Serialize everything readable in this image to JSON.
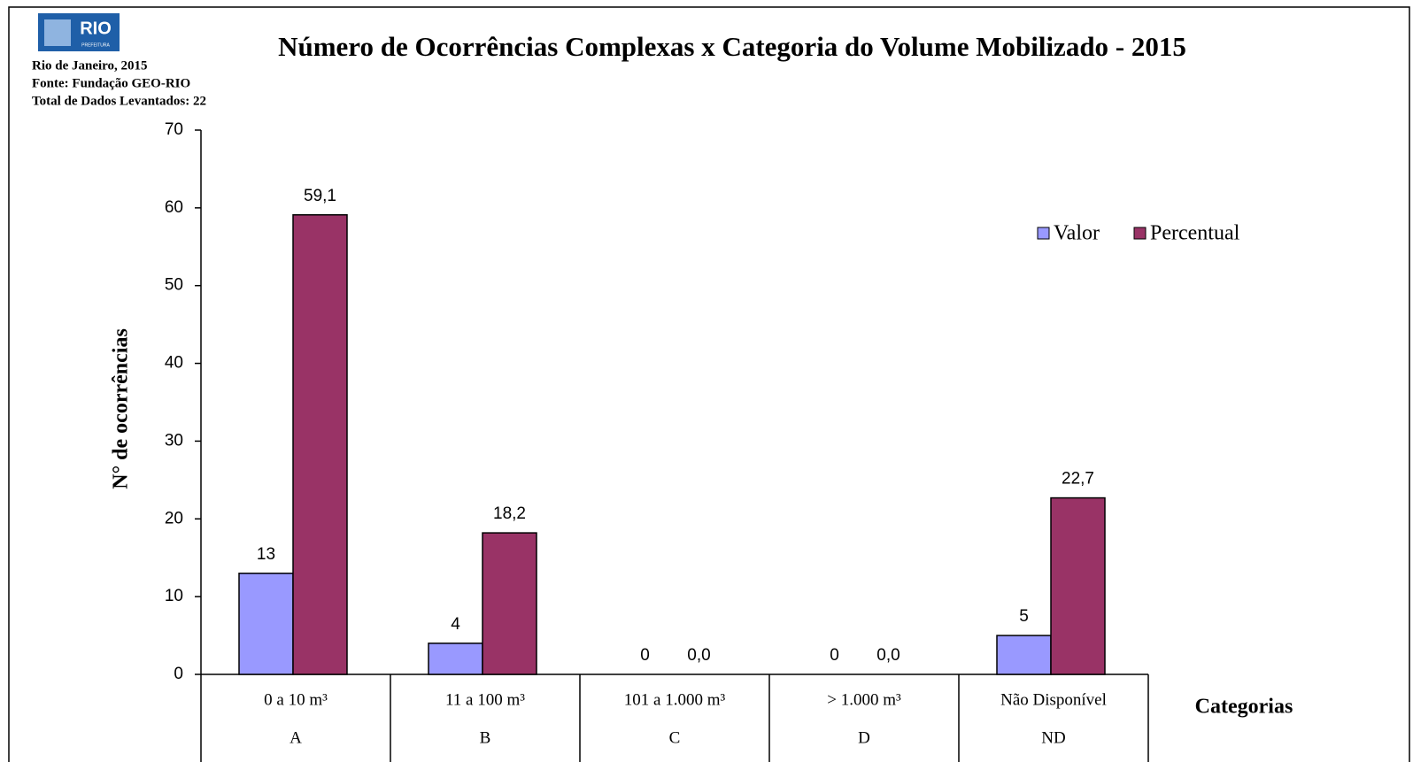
{
  "logo": {
    "text": "RIO",
    "subtext": "PREFEITURA"
  },
  "chart_data": {
    "type": "bar",
    "title": "Número de Ocorrências Complexas x Categoria do Volume Mobilizado - 2015",
    "subtitle_lines": [
      "Rio de Janeiro, 2015",
      "Fonte: Fundação GEO-RIO",
      "Total de Dados Levantados: 22"
    ],
    "y_label": "N° de ocorrências",
    "x_label": "Categorias",
    "categories": [
      "0 a 10 m³",
      "11 a 100 m³",
      "101 a 1.000 m³",
      "> 1.000 m³",
      "Não Disponível"
    ],
    "category_codes": [
      "A",
      "B",
      "C",
      "D",
      "ND"
    ],
    "series": [
      {
        "name": "Valor",
        "color": "#9999ff",
        "values": [
          13,
          4,
          0,
          0,
          5
        ]
      },
      {
        "name": "Percentual",
        "color": "#993366",
        "values": [
          59.1,
          18.2,
          0,
          0,
          22.7
        ],
        "value_labels": [
          "59,1",
          "18,2",
          "0,0",
          "0,0",
          "22,7"
        ]
      }
    ],
    "ylim": [
      0,
      70
    ],
    "yticks": [
      0,
      10,
      20,
      30,
      40,
      50,
      60,
      70
    ],
    "legend": "upper right"
  }
}
